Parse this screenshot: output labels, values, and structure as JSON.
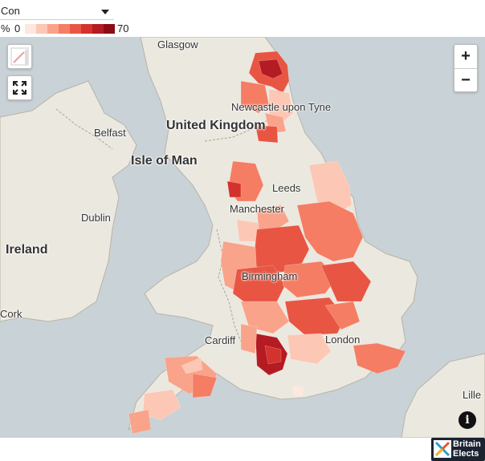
{
  "party_select": {
    "value": "Con"
  },
  "legend": {
    "unit": "%",
    "min": "0",
    "max": "70",
    "colors": [
      "#fde7df",
      "#fcc7b4",
      "#f9a38a",
      "#f47d64",
      "#e85543",
      "#d4322d",
      "#b51b22",
      "#8c0b15"
    ]
  },
  "map": {
    "labels": {
      "glasgow": "Glasgow",
      "newcastle": "Newcastle upon Tyne",
      "united_kingdom": "United Kingdom",
      "belfast": "Belfast",
      "isle_of_man": "Isle of Man",
      "leeds": "Leeds",
      "manchester": "Manchester",
      "dublin": "Dublin",
      "ireland": "Ireland",
      "birmingham": "Birmingham",
      "cork": "Cork",
      "cardiff": "Cardiff",
      "london": "London",
      "lille": "Lille"
    },
    "colors": {
      "sea": "#c9d2d6",
      "land": "#ebe8df",
      "border": "#a9a49a"
    }
  },
  "controls": {
    "zoom_in": "+",
    "zoom_out": "−",
    "info": "i"
  },
  "brand": {
    "line1": "Britain",
    "line2": "Elects"
  }
}
